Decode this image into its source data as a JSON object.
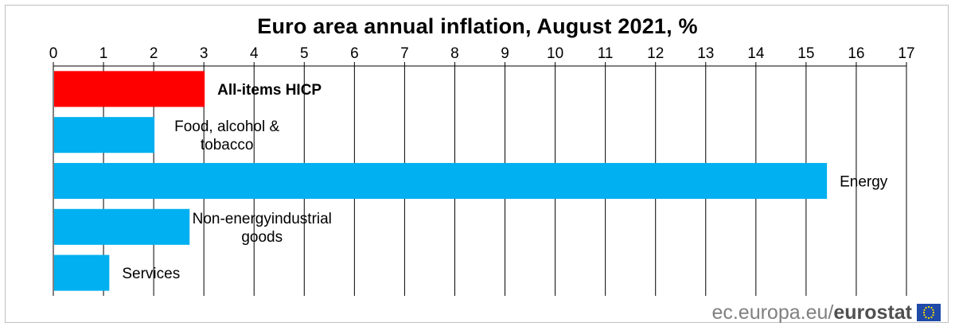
{
  "chart_data": {
    "type": "bar",
    "orientation": "horizontal",
    "title": "Euro area annual inflation,  August 2021, %",
    "xlim": [
      0,
      17
    ],
    "x_ticks": [
      0,
      1,
      2,
      3,
      4,
      5,
      6,
      7,
      8,
      9,
      10,
      11,
      12,
      13,
      14,
      15,
      16,
      17
    ],
    "axis_position": "top",
    "grid": true,
    "categories": [
      [
        "All-items HICP"
      ],
      [
        "Food, alcohol &",
        "tobacco"
      ],
      [
        "Energy"
      ],
      [
        "Non-energyindustrial",
        "goods"
      ],
      [
        "Services"
      ]
    ],
    "values": [
      3.0,
      2.0,
      15.4,
      2.7,
      1.1
    ],
    "colors": [
      "#ff0000",
      "#00b0f0",
      "#00b0f0",
      "#00b0f0",
      "#00b0f0"
    ],
    "bold_labels": [
      true,
      false,
      false,
      false,
      false
    ]
  },
  "footer": {
    "source_light": "ec.europa.eu/",
    "source_bold": "eurostat"
  }
}
